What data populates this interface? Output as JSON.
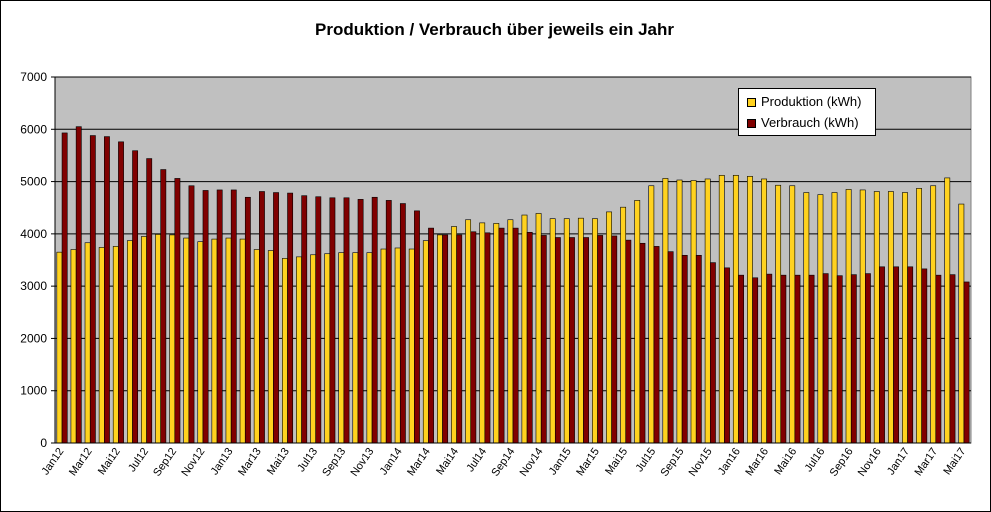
{
  "chart_data": {
    "type": "bar",
    "title": "Produktion / Verbrauch über jeweils ein Jahr",
    "xlabel": "",
    "ylabel": "",
    "ylim": [
      0,
      7000
    ],
    "yticks": [
      0,
      1000,
      2000,
      3000,
      4000,
      5000,
      6000,
      7000
    ],
    "grid": true,
    "legend_position": "top-right",
    "categories": [
      "Jan12",
      "Feb12",
      "Mrz12",
      "Apr12",
      "Mai12",
      "Jun12",
      "Jul12",
      "Aug12",
      "Sep12",
      "Okt12",
      "Nov12",
      "Dez12",
      "Jan13",
      "Feb13",
      "Mrz13",
      "Apr13",
      "Mai13",
      "Jun13",
      "Jul13",
      "Aug13",
      "Sep13",
      "Okt13",
      "Nov13",
      "Dez13",
      "Jan14",
      "Feb14",
      "Mrz14",
      "Apr14",
      "Mai14",
      "Jun14",
      "Jul14",
      "Aug14",
      "Sep14",
      "Okt14",
      "Nov14",
      "Dez14",
      "Jan15",
      "Feb15",
      "Mrz15",
      "Apr15",
      "Mai15",
      "Jun15",
      "Jul15",
      "Aug15",
      "Sep15",
      "Okt15",
      "Nov15",
      "Dez15",
      "Jan16",
      "Feb16",
      "Mrz16",
      "Apr16",
      "Mai16",
      "Jun16",
      "Jul16",
      "Aug16",
      "Sep16",
      "Okt16",
      "Nov16",
      "Dez16",
      "Jan17",
      "Feb17",
      "Mrz17",
      "Apr17",
      "Mai17"
    ],
    "category_labels": [
      "Jan12",
      "",
      "Mar12",
      "",
      "Mai12",
      "",
      "Jul12",
      "",
      "Sep12",
      "",
      "Nov12",
      "",
      "Jan13",
      "",
      "Mar13",
      "",
      "Mai13",
      "",
      "Jul13",
      "",
      "Sep13",
      "",
      "Nov13",
      "",
      "Jan14",
      "",
      "Mar14",
      "",
      "Mai14",
      "",
      "Jul14",
      "",
      "Sep14",
      "",
      "Nov14",
      "",
      "Jan15",
      "",
      "Mar15",
      "",
      "Mai15",
      "",
      "Jul15",
      "",
      "Sep15",
      "",
      "Nov15",
      "",
      "Jan16",
      "",
      "Mar16",
      "",
      "Mai16",
      "",
      "Jul16",
      "",
      "Sep16",
      "",
      "Nov16",
      "",
      "Jan17",
      "",
      "Mar17",
      "",
      "Mai17"
    ],
    "series": [
      {
        "name": "Produktion (kWh)",
        "color": "#FFD21F",
        "values": [
          3650,
          3700,
          3830,
          3740,
          3760,
          3870,
          3950,
          3990,
          3980,
          3920,
          3850,
          3900,
          3920,
          3900,
          3700,
          3680,
          3530,
          3560,
          3600,
          3620,
          3640,
          3640,
          3640,
          3710,
          3730,
          3710,
          3870,
          3980,
          4140,
          4270,
          4210,
          4200,
          4270,
          4360,
          4390,
          4290,
          4290,
          4300,
          4290,
          4420,
          4510,
          4640,
          4920,
          5060,
          5030,
          5020,
          5050,
          5120,
          5120,
          5100,
          5050,
          4930,
          4920,
          4790,
          4750,
          4790,
          4850,
          4840,
          4810,
          4810,
          4790,
          4870,
          4920,
          5070,
          4570
        ]
      },
      {
        "name": "Verbrauch (kWh)",
        "color": "#800000",
        "values": [
          5930,
          6050,
          5880,
          5860,
          5760,
          5590,
          5440,
          5230,
          5060,
          4920,
          4830,
          4840,
          4840,
          4700,
          4810,
          4790,
          4780,
          4730,
          4710,
          4690,
          4690,
          4660,
          4700,
          4640,
          4580,
          4440,
          4110,
          3980,
          3980,
          4040,
          4020,
          4110,
          4110,
          4030,
          3970,
          3930,
          3930,
          3930,
          3970,
          3960,
          3880,
          3820,
          3760,
          3660,
          3590,
          3590,
          3450,
          3350,
          3210,
          3160,
          3230,
          3210,
          3210,
          3210,
          3240,
          3200,
          3220,
          3240,
          3370,
          3370,
          3370,
          3330,
          3210,
          3220,
          3080
        ]
      }
    ]
  }
}
